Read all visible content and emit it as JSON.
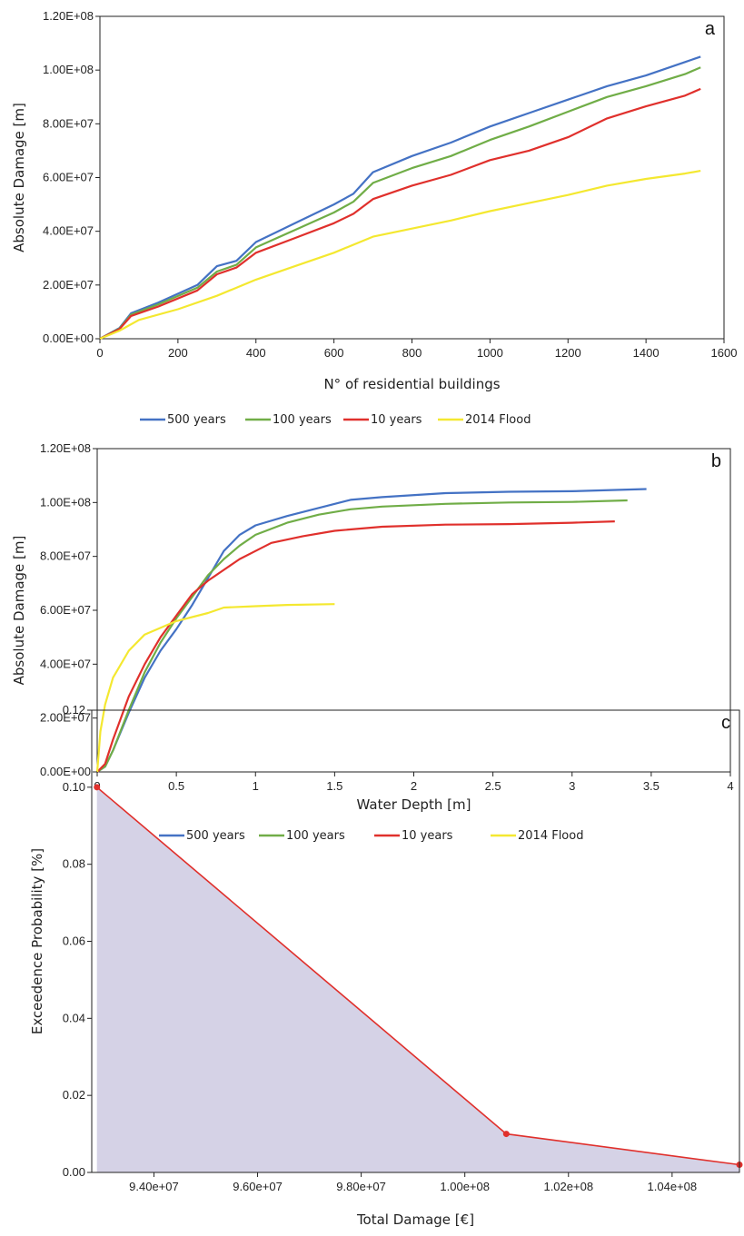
{
  "chart_data": [
    {
      "panel": "a",
      "type": "line",
      "xlabel": "N° of residential buildings",
      "ylabel": "Absolute Damage [m]",
      "xlim": [
        0,
        1600
      ],
      "ylim": [
        0,
        120000000
      ],
      "x_ticks": [
        "0",
        "200",
        "400",
        "600",
        "800",
        "1000",
        "1200",
        "1400",
        "1600"
      ],
      "y_ticks": [
        "0.00E+00",
        "2.00E+07",
        "4.00E+07",
        "6.00E+07",
        "8.00E+07",
        "1.00E+08",
        "1.20E+08"
      ],
      "series": [
        {
          "name": "500 years",
          "color": "#4472C4",
          "points": [
            [
              0,
              0
            ],
            [
              50,
              4000000
            ],
            [
              80,
              9500000
            ],
            [
              150,
              13500000
            ],
            [
              250,
              20000000
            ],
            [
              300,
              27000000
            ],
            [
              350,
              29000000
            ],
            [
              400,
              36000000
            ],
            [
              500,
              43000000
            ],
            [
              600,
              50000000
            ],
            [
              650,
              54000000
            ],
            [
              700,
              62000000
            ],
            [
              800,
              68000000
            ],
            [
              900,
              73000000
            ],
            [
              1000,
              79000000
            ],
            [
              1100,
              84000000
            ],
            [
              1200,
              89000000
            ],
            [
              1300,
              94000000
            ],
            [
              1400,
              98000000
            ],
            [
              1500,
              103000000
            ],
            [
              1540,
              105000000
            ]
          ]
        },
        {
          "name": "100 years",
          "color": "#70AD47",
          "points": [
            [
              0,
              0
            ],
            [
              50,
              3800000
            ],
            [
              80,
              9000000
            ],
            [
              150,
              12800000
            ],
            [
              250,
              19000000
            ],
            [
              300,
              25000000
            ],
            [
              350,
              27500000
            ],
            [
              400,
              34000000
            ],
            [
              500,
              40500000
            ],
            [
              600,
              47000000
            ],
            [
              650,
              51000000
            ],
            [
              700,
              58000000
            ],
            [
              800,
              63500000
            ],
            [
              900,
              68000000
            ],
            [
              1000,
              74000000
            ],
            [
              1100,
              79000000
            ],
            [
              1200,
              84500000
            ],
            [
              1300,
              90000000
            ],
            [
              1400,
              94000000
            ],
            [
              1500,
              98500000
            ],
            [
              1540,
              101000000
            ]
          ]
        },
        {
          "name": "10 years",
          "color": "#E0302C",
          "points": [
            [
              0,
              0
            ],
            [
              50,
              3600000
            ],
            [
              80,
              8500000
            ],
            [
              150,
              12000000
            ],
            [
              250,
              18000000
            ],
            [
              300,
              24000000
            ],
            [
              350,
              26500000
            ],
            [
              400,
              32000000
            ],
            [
              500,
              37500000
            ],
            [
              600,
              43000000
            ],
            [
              650,
              46500000
            ],
            [
              700,
              52000000
            ],
            [
              800,
              57000000
            ],
            [
              900,
              61000000
            ],
            [
              1000,
              66500000
            ],
            [
              1100,
              70000000
            ],
            [
              1200,
              75000000
            ],
            [
              1300,
              82000000
            ],
            [
              1400,
              86500000
            ],
            [
              1500,
              90500000
            ],
            [
              1540,
              93000000
            ]
          ]
        },
        {
          "name": "2014 Flood",
          "color": "#F4E830",
          "points": [
            [
              0,
              0
            ],
            [
              50,
              3000000
            ],
            [
              100,
              7000000
            ],
            [
              200,
              11000000
            ],
            [
              300,
              16000000
            ],
            [
              400,
              22000000
            ],
            [
              500,
              27000000
            ],
            [
              600,
              32000000
            ],
            [
              700,
              38000000
            ],
            [
              800,
              41000000
            ],
            [
              900,
              44000000
            ],
            [
              1000,
              47500000
            ],
            [
              1100,
              50500000
            ],
            [
              1200,
              53500000
            ],
            [
              1300,
              57000000
            ],
            [
              1400,
              59500000
            ],
            [
              1500,
              61500000
            ],
            [
              1540,
              62500000
            ]
          ]
        }
      ]
    },
    {
      "panel": "b",
      "type": "line",
      "xlabel": "Water Depth [m]",
      "ylabel": "Absolute Damage [m]",
      "xlim": [
        0,
        4
      ],
      "ylim": [
        0,
        120000000
      ],
      "x_ticks": [
        "0",
        "0.5",
        "1",
        "1.5",
        "2",
        "2.5",
        "3",
        "3.5",
        "4"
      ],
      "y_ticks": [
        "0.00E+00",
        "2.00E+07",
        "4.00E+07",
        "6.00E+07",
        "8.00E+07",
        "1.00E+08",
        "1.20E+08"
      ],
      "series": [
        {
          "name": "500 years",
          "color": "#4472C4",
          "points": [
            [
              0,
              0
            ],
            [
              0.05,
              2000000
            ],
            [
              0.1,
              8000000
            ],
            [
              0.2,
              22000000
            ],
            [
              0.3,
              35000000
            ],
            [
              0.4,
              45000000
            ],
            [
              0.5,
              53000000
            ],
            [
              0.6,
              62000000
            ],
            [
              0.7,
              72000000
            ],
            [
              0.8,
              82000000
            ],
            [
              0.9,
              88000000
            ],
            [
              1.0,
              91500000
            ],
            [
              1.2,
              95000000
            ],
            [
              1.4,
              98000000
            ],
            [
              1.6,
              101000000
            ],
            [
              1.8,
              102000000
            ],
            [
              2.2,
              103500000
            ],
            [
              2.6,
              104000000
            ],
            [
              3.0,
              104200000
            ],
            [
              3.47,
              105000000
            ]
          ]
        },
        {
          "name": "100 years",
          "color": "#70AD47",
          "points": [
            [
              0,
              0
            ],
            [
              0.05,
              2000000
            ],
            [
              0.1,
              8000000
            ],
            [
              0.2,
              23000000
            ],
            [
              0.3,
              37000000
            ],
            [
              0.4,
              48000000
            ],
            [
              0.5,
              57000000
            ],
            [
              0.6,
              65000000
            ],
            [
              0.7,
              73000000
            ],
            [
              0.8,
              79000000
            ],
            [
              0.9,
              84000000
            ],
            [
              1.0,
              88000000
            ],
            [
              1.2,
              92500000
            ],
            [
              1.4,
              95500000
            ],
            [
              1.6,
              97500000
            ],
            [
              1.8,
              98500000
            ],
            [
              2.2,
              99500000
            ],
            [
              2.6,
              100000000
            ],
            [
              3.0,
              100200000
            ],
            [
              3.35,
              100800000
            ]
          ]
        },
        {
          "name": "10 years",
          "color": "#E0302C",
          "points": [
            [
              0,
              0
            ],
            [
              0.05,
              3000000
            ],
            [
              0.1,
              12000000
            ],
            [
              0.2,
              28000000
            ],
            [
              0.3,
              40000000
            ],
            [
              0.4,
              50000000
            ],
            [
              0.5,
              58000000
            ],
            [
              0.6,
              66000000
            ],
            [
              0.7,
              71000000
            ],
            [
              0.8,
              75000000
            ],
            [
              0.9,
              79000000
            ],
            [
              1.0,
              82000000
            ],
            [
              1.1,
              85000000
            ],
            [
              1.3,
              87500000
            ],
            [
              1.5,
              89500000
            ],
            [
              1.8,
              91000000
            ],
            [
              2.2,
              91800000
            ],
            [
              2.6,
              92000000
            ],
            [
              3.0,
              92500000
            ],
            [
              3.27,
              93000000
            ]
          ]
        },
        {
          "name": "2014 Flood",
          "color": "#F4E830",
          "points": [
            [
              0,
              0
            ],
            [
              0.02,
              15000000
            ],
            [
              0.05,
              25000000
            ],
            [
              0.1,
              35000000
            ],
            [
              0.2,
              45000000
            ],
            [
              0.3,
              51000000
            ],
            [
              0.5,
              56000000
            ],
            [
              0.7,
              59000000
            ],
            [
              0.8,
              61000000
            ],
            [
              1.0,
              61500000
            ],
            [
              1.2,
              62000000
            ],
            [
              1.5,
              62300000
            ]
          ]
        }
      ]
    },
    {
      "panel": "c",
      "type": "area",
      "xlabel": "Total Damage [€]",
      "ylabel": "Exceedence Probability [%]",
      "xlim": [
        92800000,
        105300000
      ],
      "ylim": [
        0,
        0.12
      ],
      "x_ticks": [
        "9.40e+07",
        "9.60e+07",
        "9.80e+07",
        "1.00e+08",
        "1.02e+08",
        "1.04e+08"
      ],
      "y_ticks": [
        "0.00",
        "0.02",
        "0.04",
        "0.06",
        "0.08",
        "0.10",
        "0.12"
      ],
      "fill_color": "#D5D2E6",
      "line_color": "#E0302C",
      "points": [
        [
          92900000,
          0.1
        ],
        [
          100800000,
          0.01
        ],
        [
          105300000,
          0.002
        ]
      ]
    }
  ],
  "legends": {
    "b": [
      "500 years",
      "100 years",
      "10 years",
      "2014 Flood"
    ],
    "c": [
      "500 years",
      "100 years",
      "10 years",
      "2014 Flood"
    ]
  },
  "legend_colors": [
    "#4472C4",
    "#70AD47",
    "#E0302C",
    "#F4E830"
  ]
}
